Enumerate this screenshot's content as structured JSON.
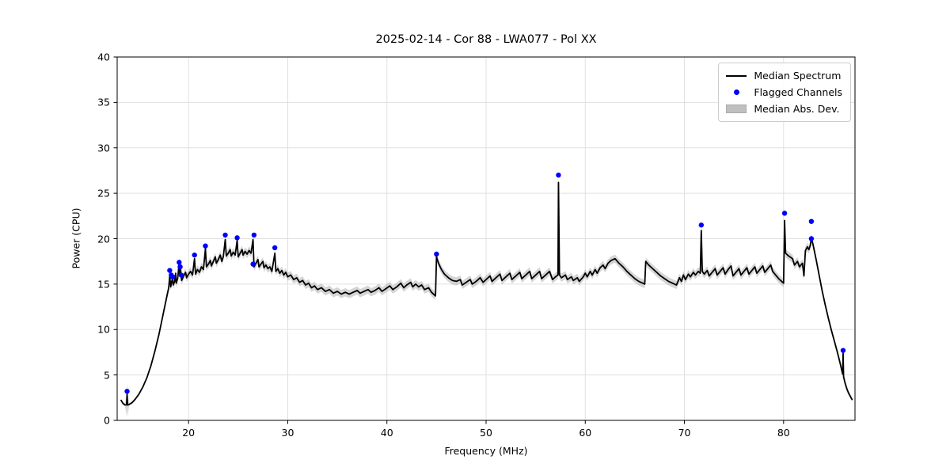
{
  "chart_data": {
    "type": "line",
    "title": "2025-02-14 - Cor 88 - LWA077 - Pol XX",
    "xlabel": "Frequency (MHz)",
    "ylabel": "Power (CPU)",
    "xlim": [
      12.8,
      87.2
    ],
    "ylim": [
      0,
      40
    ],
    "x_ticks": [
      20,
      30,
      40,
      50,
      60,
      70,
      80
    ],
    "y_ticks": [
      0,
      5,
      10,
      15,
      20,
      25,
      30,
      35,
      40
    ],
    "grid": true,
    "legend_position": "upper right",
    "series": [
      {
        "name": "Median Spectrum",
        "type": "line",
        "color": "#000000",
        "points": [
          [
            13.2,
            2.2
          ],
          [
            13.4,
            1.85
          ],
          [
            13.6,
            1.7
          ],
          [
            13.75,
            1.7
          ],
          [
            13.8,
            2.9
          ],
          [
            13.85,
            1.7
          ],
          [
            14.0,
            1.75
          ],
          [
            14.3,
            1.95
          ],
          [
            14.6,
            2.3
          ],
          [
            15.0,
            2.9
          ],
          [
            15.4,
            3.7
          ],
          [
            15.8,
            4.7
          ],
          [
            16.2,
            6.0
          ],
          [
            16.6,
            7.6
          ],
          [
            17.0,
            9.4
          ],
          [
            17.4,
            11.5
          ],
          [
            17.8,
            13.6
          ],
          [
            18.0,
            14.6
          ],
          [
            18.1,
            15.9
          ],
          [
            18.2,
            14.7
          ],
          [
            18.3,
            15.3
          ],
          [
            18.4,
            15.7
          ],
          [
            18.45,
            14.9
          ],
          [
            18.6,
            15.3
          ],
          [
            18.7,
            16.2
          ],
          [
            18.75,
            15.1
          ],
          [
            18.9,
            15.6
          ],
          [
            19.05,
            17.3
          ],
          [
            19.1,
            15.9
          ],
          [
            19.2,
            16.6
          ],
          [
            19.3,
            15.4
          ],
          [
            19.5,
            15.9
          ],
          [
            19.7,
            16.3
          ],
          [
            19.8,
            15.7
          ],
          [
            20.0,
            16.1
          ],
          [
            20.2,
            16.4
          ],
          [
            20.4,
            16.0
          ],
          [
            20.6,
            17.8
          ],
          [
            20.7,
            16.1
          ],
          [
            20.9,
            16.6
          ],
          [
            21.1,
            16.3
          ],
          [
            21.3,
            16.9
          ],
          [
            21.5,
            16.6
          ],
          [
            21.7,
            18.9
          ],
          [
            21.8,
            16.9
          ],
          [
            22.0,
            17.2
          ],
          [
            22.2,
            17.6
          ],
          [
            22.3,
            17.0
          ],
          [
            22.5,
            17.5
          ],
          [
            22.7,
            18.0
          ],
          [
            22.8,
            17.3
          ],
          [
            23.0,
            17.7
          ],
          [
            23.2,
            18.2
          ],
          [
            23.35,
            17.5
          ],
          [
            23.5,
            18.0
          ],
          [
            23.7,
            19.9
          ],
          [
            23.8,
            18.1
          ],
          [
            24.0,
            18.4
          ],
          [
            24.2,
            18.8
          ],
          [
            24.3,
            18.1
          ],
          [
            24.5,
            18.5
          ],
          [
            24.7,
            18.2
          ],
          [
            24.9,
            19.8
          ],
          [
            25.0,
            18.0
          ],
          [
            25.2,
            18.4
          ],
          [
            25.4,
            18.8
          ],
          [
            25.5,
            18.2
          ],
          [
            25.7,
            18.6
          ],
          [
            25.9,
            18.3
          ],
          [
            26.1,
            18.7
          ],
          [
            26.3,
            18.4
          ],
          [
            26.5,
            19.9
          ],
          [
            26.6,
            16.9
          ],
          [
            26.8,
            17.3
          ],
          [
            27.0,
            17.7
          ],
          [
            27.1,
            16.9
          ],
          [
            27.3,
            17.2
          ],
          [
            27.5,
            17.5
          ],
          [
            27.6,
            16.8
          ],
          [
            27.8,
            17.1
          ],
          [
            28.0,
            16.7
          ],
          [
            28.2,
            16.9
          ],
          [
            28.4,
            16.4
          ],
          [
            28.7,
            18.4
          ],
          [
            28.8,
            16.4
          ],
          [
            29.0,
            16.7
          ],
          [
            29.2,
            16.2
          ],
          [
            29.4,
            16.5
          ],
          [
            29.6,
            16.0
          ],
          [
            29.8,
            16.3
          ],
          [
            30.0,
            15.8
          ],
          [
            30.3,
            16.0
          ],
          [
            30.6,
            15.5
          ],
          [
            30.9,
            15.7
          ],
          [
            31.2,
            15.2
          ],
          [
            31.5,
            15.4
          ],
          [
            31.8,
            14.9
          ],
          [
            32.1,
            15.1
          ],
          [
            32.4,
            14.6
          ],
          [
            32.7,
            14.8
          ],
          [
            33.0,
            14.4
          ],
          [
            33.4,
            14.6
          ],
          [
            33.8,
            14.2
          ],
          [
            34.2,
            14.4
          ],
          [
            34.6,
            14.0
          ],
          [
            35.0,
            14.2
          ],
          [
            35.4,
            13.9
          ],
          [
            35.8,
            14.1
          ],
          [
            36.2,
            13.9
          ],
          [
            36.6,
            14.1
          ],
          [
            37.0,
            14.3
          ],
          [
            37.3,
            14.0
          ],
          [
            37.7,
            14.2
          ],
          [
            38.1,
            14.4
          ],
          [
            38.4,
            14.1
          ],
          [
            38.8,
            14.3
          ],
          [
            39.2,
            14.6
          ],
          [
            39.5,
            14.2
          ],
          [
            39.9,
            14.5
          ],
          [
            40.3,
            14.8
          ],
          [
            40.6,
            14.4
          ],
          [
            41.0,
            14.7
          ],
          [
            41.4,
            15.1
          ],
          [
            41.7,
            14.6
          ],
          [
            42.0,
            14.9
          ],
          [
            42.4,
            15.2
          ],
          [
            42.6,
            14.7
          ],
          [
            42.9,
            15.0
          ],
          [
            43.2,
            14.7
          ],
          [
            43.5,
            14.9
          ],
          [
            43.8,
            14.4
          ],
          [
            44.2,
            14.6
          ],
          [
            44.5,
            14.1
          ],
          [
            44.9,
            13.7
          ],
          [
            45.0,
            18.0
          ],
          [
            45.2,
            17.3
          ],
          [
            45.5,
            16.6
          ],
          [
            45.8,
            16.1
          ],
          [
            46.2,
            15.7
          ],
          [
            46.6,
            15.4
          ],
          [
            47.0,
            15.3
          ],
          [
            47.4,
            15.5
          ],
          [
            47.6,
            14.9
          ],
          [
            48.0,
            15.2
          ],
          [
            48.4,
            15.5
          ],
          [
            48.6,
            15.0
          ],
          [
            49.0,
            15.3
          ],
          [
            49.4,
            15.7
          ],
          [
            49.7,
            15.2
          ],
          [
            50.0,
            15.5
          ],
          [
            50.4,
            15.9
          ],
          [
            50.6,
            15.3
          ],
          [
            51.0,
            15.7
          ],
          [
            51.4,
            16.1
          ],
          [
            51.6,
            15.4
          ],
          [
            52.0,
            15.8
          ],
          [
            52.4,
            16.2
          ],
          [
            52.6,
            15.5
          ],
          [
            53.0,
            15.9
          ],
          [
            53.4,
            16.3
          ],
          [
            53.6,
            15.6
          ],
          [
            54.0,
            16.0
          ],
          [
            54.4,
            16.4
          ],
          [
            54.6,
            15.6
          ],
          [
            55.0,
            16.0
          ],
          [
            55.4,
            16.4
          ],
          [
            55.6,
            15.6
          ],
          [
            56.0,
            16.0
          ],
          [
            56.4,
            16.4
          ],
          [
            56.7,
            15.5
          ],
          [
            57.0,
            15.8
          ],
          [
            57.25,
            16.0
          ],
          [
            57.3,
            26.2
          ],
          [
            57.4,
            16.0
          ],
          [
            57.6,
            15.7
          ],
          [
            58.0,
            16.0
          ],
          [
            58.2,
            15.5
          ],
          [
            58.6,
            15.8
          ],
          [
            58.8,
            15.4
          ],
          [
            59.2,
            15.7
          ],
          [
            59.4,
            15.3
          ],
          [
            59.8,
            15.8
          ],
          [
            60.0,
            16.2
          ],
          [
            60.2,
            15.8
          ],
          [
            60.5,
            16.4
          ],
          [
            60.7,
            16.0
          ],
          [
            61.0,
            16.6
          ],
          [
            61.2,
            16.2
          ],
          [
            61.5,
            16.8
          ],
          [
            61.8,
            17.1
          ],
          [
            62.0,
            16.7
          ],
          [
            62.3,
            17.3
          ],
          [
            62.6,
            17.6
          ],
          [
            63.0,
            17.8
          ],
          [
            63.4,
            17.3
          ],
          [
            63.8,
            16.9
          ],
          [
            64.2,
            16.4
          ],
          [
            64.6,
            16.0
          ],
          [
            65.0,
            15.6
          ],
          [
            65.4,
            15.3
          ],
          [
            65.8,
            15.1
          ],
          [
            66.0,
            15.0
          ],
          [
            66.1,
            17.5
          ],
          [
            66.4,
            17.1
          ],
          [
            66.8,
            16.7
          ],
          [
            67.2,
            16.3
          ],
          [
            67.6,
            15.9
          ],
          [
            68.0,
            15.6
          ],
          [
            68.4,
            15.3
          ],
          [
            68.8,
            15.1
          ],
          [
            69.2,
            14.9
          ],
          [
            69.5,
            15.7
          ],
          [
            69.7,
            15.3
          ],
          [
            69.9,
            16.0
          ],
          [
            70.1,
            15.5
          ],
          [
            70.4,
            16.1
          ],
          [
            70.6,
            15.8
          ],
          [
            70.9,
            16.3
          ],
          [
            71.1,
            16.0
          ],
          [
            71.4,
            16.4
          ],
          [
            71.6,
            16.2
          ],
          [
            71.7,
            20.9
          ],
          [
            71.8,
            16.4
          ],
          [
            72.0,
            16.1
          ],
          [
            72.3,
            16.5
          ],
          [
            72.5,
            15.9
          ],
          [
            72.8,
            16.3
          ],
          [
            73.1,
            16.7
          ],
          [
            73.3,
            16.0
          ],
          [
            73.6,
            16.4
          ],
          [
            73.9,
            16.8
          ],
          [
            74.1,
            16.1
          ],
          [
            74.4,
            16.6
          ],
          [
            74.7,
            17.0
          ],
          [
            74.9,
            15.9
          ],
          [
            75.2,
            16.3
          ],
          [
            75.5,
            16.7
          ],
          [
            75.7,
            16.0
          ],
          [
            76.0,
            16.4
          ],
          [
            76.3,
            16.8
          ],
          [
            76.5,
            16.1
          ],
          [
            76.8,
            16.5
          ],
          [
            77.1,
            16.9
          ],
          [
            77.3,
            16.2
          ],
          [
            77.6,
            16.6
          ],
          [
            77.9,
            17.0
          ],
          [
            78.1,
            16.3
          ],
          [
            78.4,
            16.7
          ],
          [
            78.7,
            17.1
          ],
          [
            78.9,
            16.4
          ],
          [
            79.2,
            16.0
          ],
          [
            79.5,
            15.6
          ],
          [
            79.8,
            15.3
          ],
          [
            80.0,
            15.1
          ],
          [
            80.1,
            22.0
          ],
          [
            80.2,
            18.4
          ],
          [
            80.5,
            18.1
          ],
          [
            80.9,
            17.8
          ],
          [
            81.1,
            17.1
          ],
          [
            81.4,
            17.5
          ],
          [
            81.6,
            16.9
          ],
          [
            81.9,
            17.3
          ],
          [
            82.05,
            15.9
          ],
          [
            82.2,
            18.7
          ],
          [
            82.4,
            19.1
          ],
          [
            82.55,
            18.8
          ],
          [
            82.7,
            19.3
          ],
          [
            82.8,
            20.1
          ],
          [
            83.0,
            19.2
          ],
          [
            83.3,
            17.6
          ],
          [
            83.6,
            15.9
          ],
          [
            83.9,
            14.2
          ],
          [
            84.2,
            12.7
          ],
          [
            84.5,
            11.3
          ],
          [
            84.8,
            10.0
          ],
          [
            85.1,
            8.8
          ],
          [
            85.4,
            7.6
          ],
          [
            85.7,
            6.3
          ],
          [
            85.95,
            5.1
          ],
          [
            86.0,
            7.4
          ],
          [
            86.05,
            4.8
          ],
          [
            86.2,
            4.1
          ],
          [
            86.4,
            3.4
          ],
          [
            86.6,
            2.9
          ],
          [
            86.8,
            2.5
          ],
          [
            86.9,
            2.3
          ]
        ]
      },
      {
        "name": "Flagged Channels",
        "type": "scatter",
        "color": "#0000ff",
        "points": [
          [
            13.8,
            3.2
          ],
          [
            18.1,
            16.5
          ],
          [
            18.25,
            16.0
          ],
          [
            18.4,
            15.8
          ],
          [
            19.05,
            17.4
          ],
          [
            19.15,
            16.9
          ],
          [
            19.25,
            16.0
          ],
          [
            20.6,
            18.2
          ],
          [
            21.7,
            19.2
          ],
          [
            23.7,
            20.4
          ],
          [
            24.9,
            20.1
          ],
          [
            26.5,
            17.2
          ],
          [
            26.6,
            20.4
          ],
          [
            28.7,
            19.0
          ],
          [
            45.0,
            18.3
          ],
          [
            57.3,
            27.0
          ],
          [
            71.7,
            21.5
          ],
          [
            80.1,
            22.8
          ],
          [
            82.8,
            21.9
          ],
          [
            82.8,
            20.0
          ],
          [
            86.0,
            7.7
          ]
        ]
      },
      {
        "name": "Median Abs. Dev.",
        "type": "band",
        "color": "#b3b3b3",
        "around": "Median Spectrum",
        "half_width_segments": [
          [
            12.8,
            13.72,
            0.15
          ],
          [
            13.72,
            13.88,
            1.3
          ],
          [
            13.88,
            17.5,
            0.15
          ],
          [
            17.5,
            83.0,
            0.45
          ],
          [
            83.0,
            86.5,
            0.3
          ],
          [
            86.5,
            87.2,
            0.2
          ]
        ]
      }
    ]
  }
}
